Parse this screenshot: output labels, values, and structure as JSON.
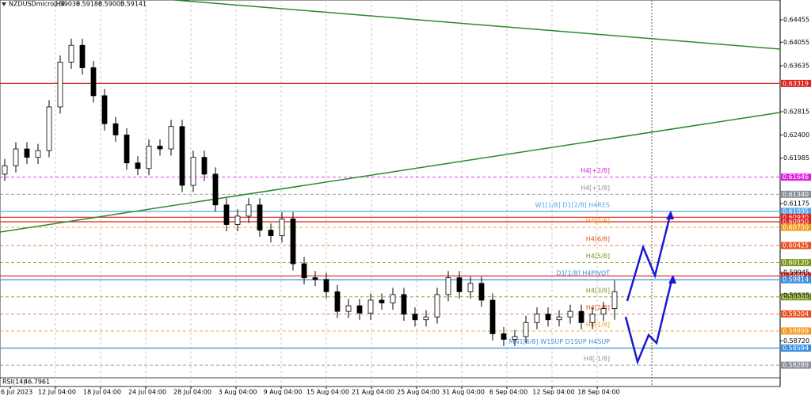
{
  "chart_data": {
    "type": "candlestick",
    "symbol": "NZDUSDmicro,H4",
    "ohlc": [
      0.59038,
      0.59186,
      0.59005,
      0.59141
    ],
    "indicator": "RSI(14)",
    "indicator_value": 46.7961,
    "categories": [
      "6 Jul 2023",
      "12 Jul 04:00",
      "18 Jul 04:00",
      "24 Jul 04:00",
      "28 Jul 04:00",
      "3 Aug 04:00",
      "9 Aug 04:00",
      "15 Aug 04:00",
      "21 Aug 04:00",
      "25 Aug 04:00",
      "31 Aug 04:00",
      "6 Sep 04:00",
      "12 Sep 04:00",
      "18 Sep 04:00"
    ],
    "open": [
      0.617,
      0.6185,
      0.6215,
      0.62,
      0.6212,
      0.629,
      0.637,
      0.64,
      0.636,
      0.631,
      0.626,
      0.624,
      0.619,
      0.618,
      0.622,
      0.6215,
      0.6255,
      0.615,
      0.62,
      0.617,
      0.6115,
      0.608,
      0.6095,
      0.6115,
      0.607,
      0.606,
      0.609,
      0.601,
      0.5985,
      0.5982,
      0.596,
      0.5925,
      0.5935,
      0.5922,
      0.5945,
      0.594,
      0.5955,
      0.592,
      0.591,
      0.5915,
      0.5955,
      0.5985,
      0.596,
      0.5975,
      0.5945,
      0.5885,
      0.5875,
      0.588,
      0.5905,
      0.592,
      0.591,
      0.5915,
      0.5925,
      0.5905,
      0.592,
      0.593
    ],
    "high": [
      0.6197,
      0.6227,
      0.6227,
      0.6224,
      0.6302,
      0.6382,
      0.6412,
      0.6412,
      0.6372,
      0.6322,
      0.6272,
      0.6252,
      0.6202,
      0.6232,
      0.6232,
      0.6267,
      0.6267,
      0.6212,
      0.6212,
      0.6182,
      0.6127,
      0.6107,
      0.6127,
      0.6127,
      0.6082,
      0.6102,
      0.6102,
      0.6022,
      0.5997,
      0.5994,
      0.5972,
      0.5947,
      0.5947,
      0.5957,
      0.5957,
      0.5967,
      0.5967,
      0.5932,
      0.5927,
      0.5967,
      0.5997,
      0.5997,
      0.5987,
      0.5987,
      0.5957,
      0.5897,
      0.5892,
      0.5917,
      0.5932,
      0.5932,
      0.5927,
      0.5937,
      0.5937,
      0.5932,
      0.5942,
      0.598
    ],
    "low": [
      0.6158,
      0.6173,
      0.6188,
      0.6188,
      0.62,
      0.6278,
      0.6358,
      0.6348,
      0.6298,
      0.6248,
      0.6228,
      0.6178,
      0.6168,
      0.6168,
      0.6203,
      0.6203,
      0.6138,
      0.6138,
      0.6158,
      0.6103,
      0.6068,
      0.6068,
      0.6083,
      0.6058,
      0.6048,
      0.6048,
      0.5998,
      0.5973,
      0.597,
      0.5948,
      0.5913,
      0.5913,
      0.591,
      0.591,
      0.5928,
      0.5928,
      0.5908,
      0.5898,
      0.5898,
      0.5903,
      0.5943,
      0.5948,
      0.5948,
      0.5933,
      0.5873,
      0.5863,
      0.5863,
      0.5868,
      0.5893,
      0.5898,
      0.5898,
      0.5903,
      0.5893,
      0.5893,
      0.5908,
      0.591
    ],
    "close": [
      0.6185,
      0.6215,
      0.62,
      0.6212,
      0.629,
      0.637,
      0.64,
      0.636,
      0.631,
      0.626,
      0.624,
      0.619,
      0.618,
      0.622,
      0.6215,
      0.6255,
      0.615,
      0.62,
      0.617,
      0.6115,
      0.608,
      0.6095,
      0.6115,
      0.607,
      0.606,
      0.609,
      0.601,
      0.5985,
      0.5982,
      0.596,
      0.5925,
      0.5935,
      0.5922,
      0.5945,
      0.594,
      0.5955,
      0.592,
      0.591,
      0.5915,
      0.5955,
      0.5985,
      0.596,
      0.5975,
      0.5945,
      0.5885,
      0.5875,
      0.588,
      0.5905,
      0.592,
      0.591,
      0.5915,
      0.5925,
      0.5905,
      0.592,
      0.593,
      0.596
    ],
    "ylim": [
      0.58078,
      0.64809
    ],
    "yticks": [
      0.64455,
      0.64055,
      0.63635,
      0.62815,
      {
        "value": 0.624,
        "label": "0.62400"
      },
      0.61985,
      0.61175,
      0.59945,
      0.59535,
      {
        "value": 0.5872,
        "label": "0.58720"
      }
    ],
    "levels": [
      {
        "value": 0.63319,
        "color": "#e0201a"
      },
      {
        "value": 0.61646,
        "color": "#e020e0",
        "name": "H4[+2/8]"
      },
      {
        "value": 0.6134,
        "label": "0.61340",
        "color": "#8a9099",
        "name": "H4[+1/8]"
      },
      {
        "value": 0.61035,
        "color": "#55a8e8",
        "name": "W1[1/8] D1[2/8] H4RES"
      },
      {
        "value": 0.6093,
        "label": "0.60930",
        "color": "#e0201a"
      },
      {
        "value": 0.6085,
        "label": "0.60850",
        "color": "#e0201a"
      },
      {
        "value": 0.6075,
        "label": "0.60750",
        "color": "#f59a1e",
        "name": "H4[7/8]"
      },
      {
        "value": 0.60425,
        "color": "#e8501a",
        "name": "H4[6/8]"
      },
      {
        "value": 0.6012,
        "label": "0.60120",
        "color": "#7c9a1a",
        "name": "H4[5/8]"
      },
      {
        "value": 0.59882,
        "color": "#e0201a"
      },
      {
        "value": 0.59814,
        "color": "#3a8ee0",
        "name": "D1[1/8] H4PIVOT"
      },
      {
        "value": 0.59509,
        "color": "#7c9a1a",
        "name": "H4[3/8]"
      },
      {
        "value": 0.59204,
        "color": "#e8501a",
        "name": "H4[2/8]"
      },
      {
        "value": 0.58899,
        "color": "#f59a1e",
        "name": "H4[1/8]"
      },
      {
        "value": 0.58594,
        "color": "#3a8ee0",
        "name": "MN1[6/8] W1SUP D1SUP H4SUP"
      },
      {
        "value": 0.58289,
        "color": "#8a9099",
        "name": "H4[-1/8]"
      }
    ]
  }
}
